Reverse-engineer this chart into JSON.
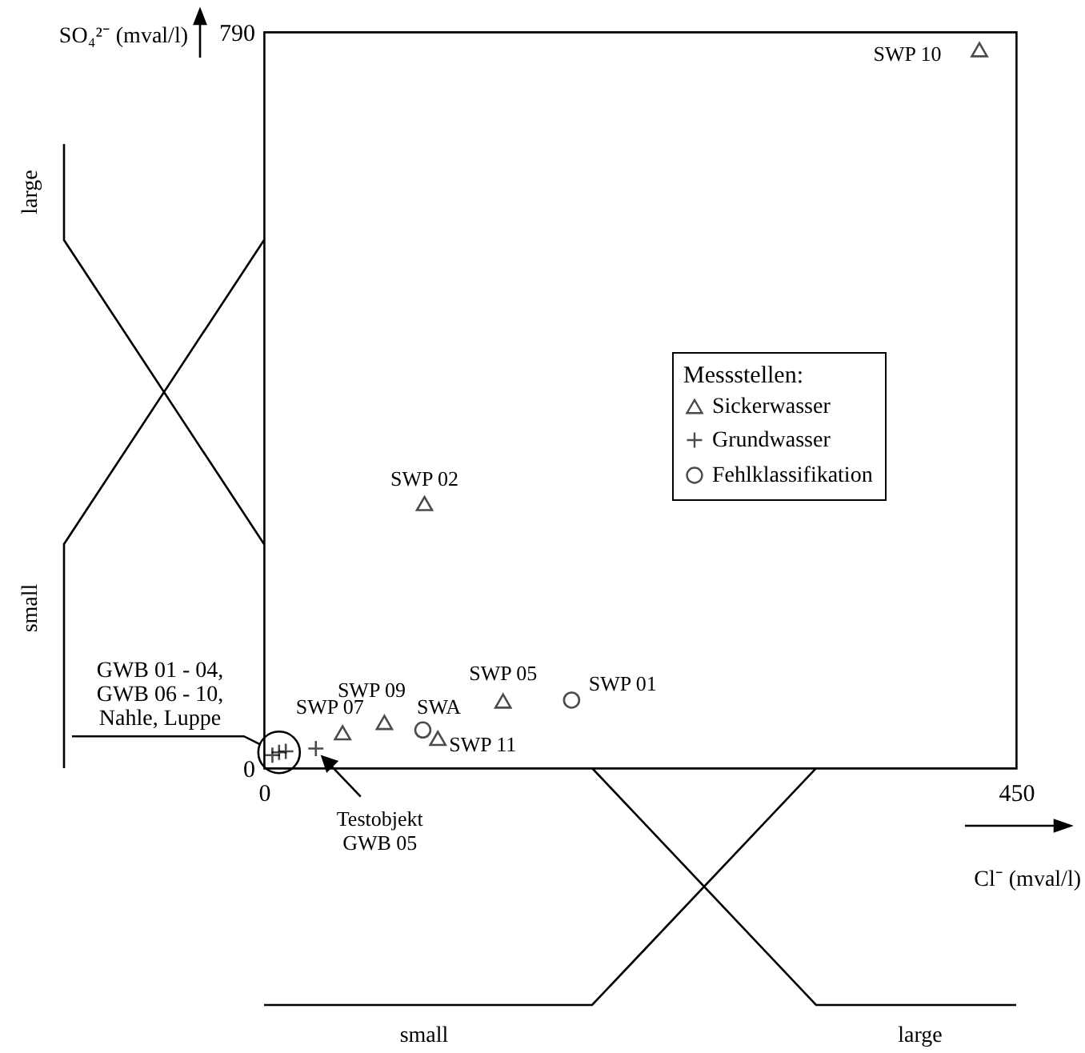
{
  "chart_data": {
    "type": "scatter",
    "xlabel": "Cl⁻ (mval/l)",
    "ylabel": "SO₄²⁻ (mval/l)",
    "legend_title": "Messstellen:",
    "xlim": [
      0,
      450
    ],
    "ylim": [
      0,
      790
    ],
    "xticks": [
      0,
      450
    ],
    "yticks": [
      0,
      790
    ],
    "legend": "right",
    "series": [
      {
        "name": "Sickerwasser",
        "color": "#000000",
        "marker": "triangle",
        "x": [
          428,
          96,
          47,
          72,
          104,
          143
        ],
        "values": [
          771,
          284,
          38,
          49,
          32,
          72
        ]
      },
      {
        "name": "Grundwasser",
        "color": "#000000",
        "marker": "cross",
        "x": [
          5,
          9,
          13,
          31
        ],
        "values": [
          14,
          17,
          18,
          21
        ]
      },
      {
        "name": "Fehlklassifikation",
        "color": "#000000",
        "marker": "circle",
        "x": [
          95,
          184
        ],
        "values": [
          41,
          73
        ]
      }
    ],
    "annotations": [
      {
        "text": "SWP 10",
        "x": 428,
        "y": 771
      },
      {
        "text": "SWP 02",
        "x": 96,
        "y": 284
      },
      {
        "text": "SWP 07",
        "x": 47,
        "y": 38
      },
      {
        "text": "SWP 09",
        "x": 72,
        "y": 49
      },
      {
        "text": "SWA",
        "x": 95,
        "y": 41
      },
      {
        "text": "SWP 11",
        "x": 104,
        "y": 32
      },
      {
        "text": "SWP 05",
        "x": 143,
        "y": 72
      },
      {
        "text": "SWP 01",
        "x": 184,
        "y": 73
      },
      "GWB 01 - 04,\nGWB 06 - 10,\nNahle, Luppe",
      {
        "text": "Testobjekt\nGWB 05",
        "x": 31,
        "y": 21
      },
      "large",
      "small",
      "small",
      "large"
    ]
  }
}
